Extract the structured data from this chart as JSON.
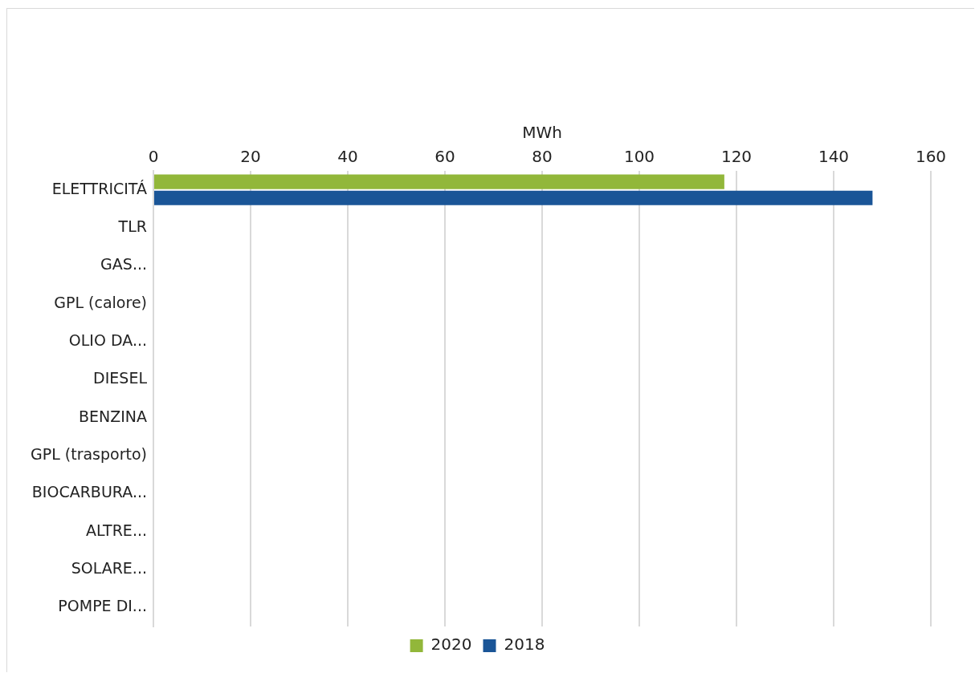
{
  "chart_data": {
    "type": "bar",
    "orientation": "horizontal",
    "xlabel": "MWh",
    "categories": [
      "ELETTRICITÁ",
      "TLR",
      "GAS...",
      "GPL (calore)",
      "OLIO DA...",
      "DIESEL",
      "BENZINA",
      "GPL (trasporto)",
      "BIOCARBURA...",
      "ALTRE...",
      "SOLARE...",
      "POMPE DI..."
    ],
    "series": [
      {
        "name": "2020",
        "color": "#92b73a",
        "values": [
          117.5,
          0,
          0,
          0,
          0,
          0,
          0,
          0,
          0,
          0,
          0,
          0
        ]
      },
      {
        "name": "2018",
        "color": "#1a5597",
        "values": [
          148,
          0,
          0,
          0,
          0,
          0,
          0,
          0,
          0,
          0,
          0,
          0
        ]
      }
    ],
    "xlim": [
      0,
      160
    ],
    "xticks": [
      0,
      20,
      40,
      60,
      80,
      100,
      120,
      140,
      160
    ],
    "grid": "x",
    "legend": "bottom"
  }
}
